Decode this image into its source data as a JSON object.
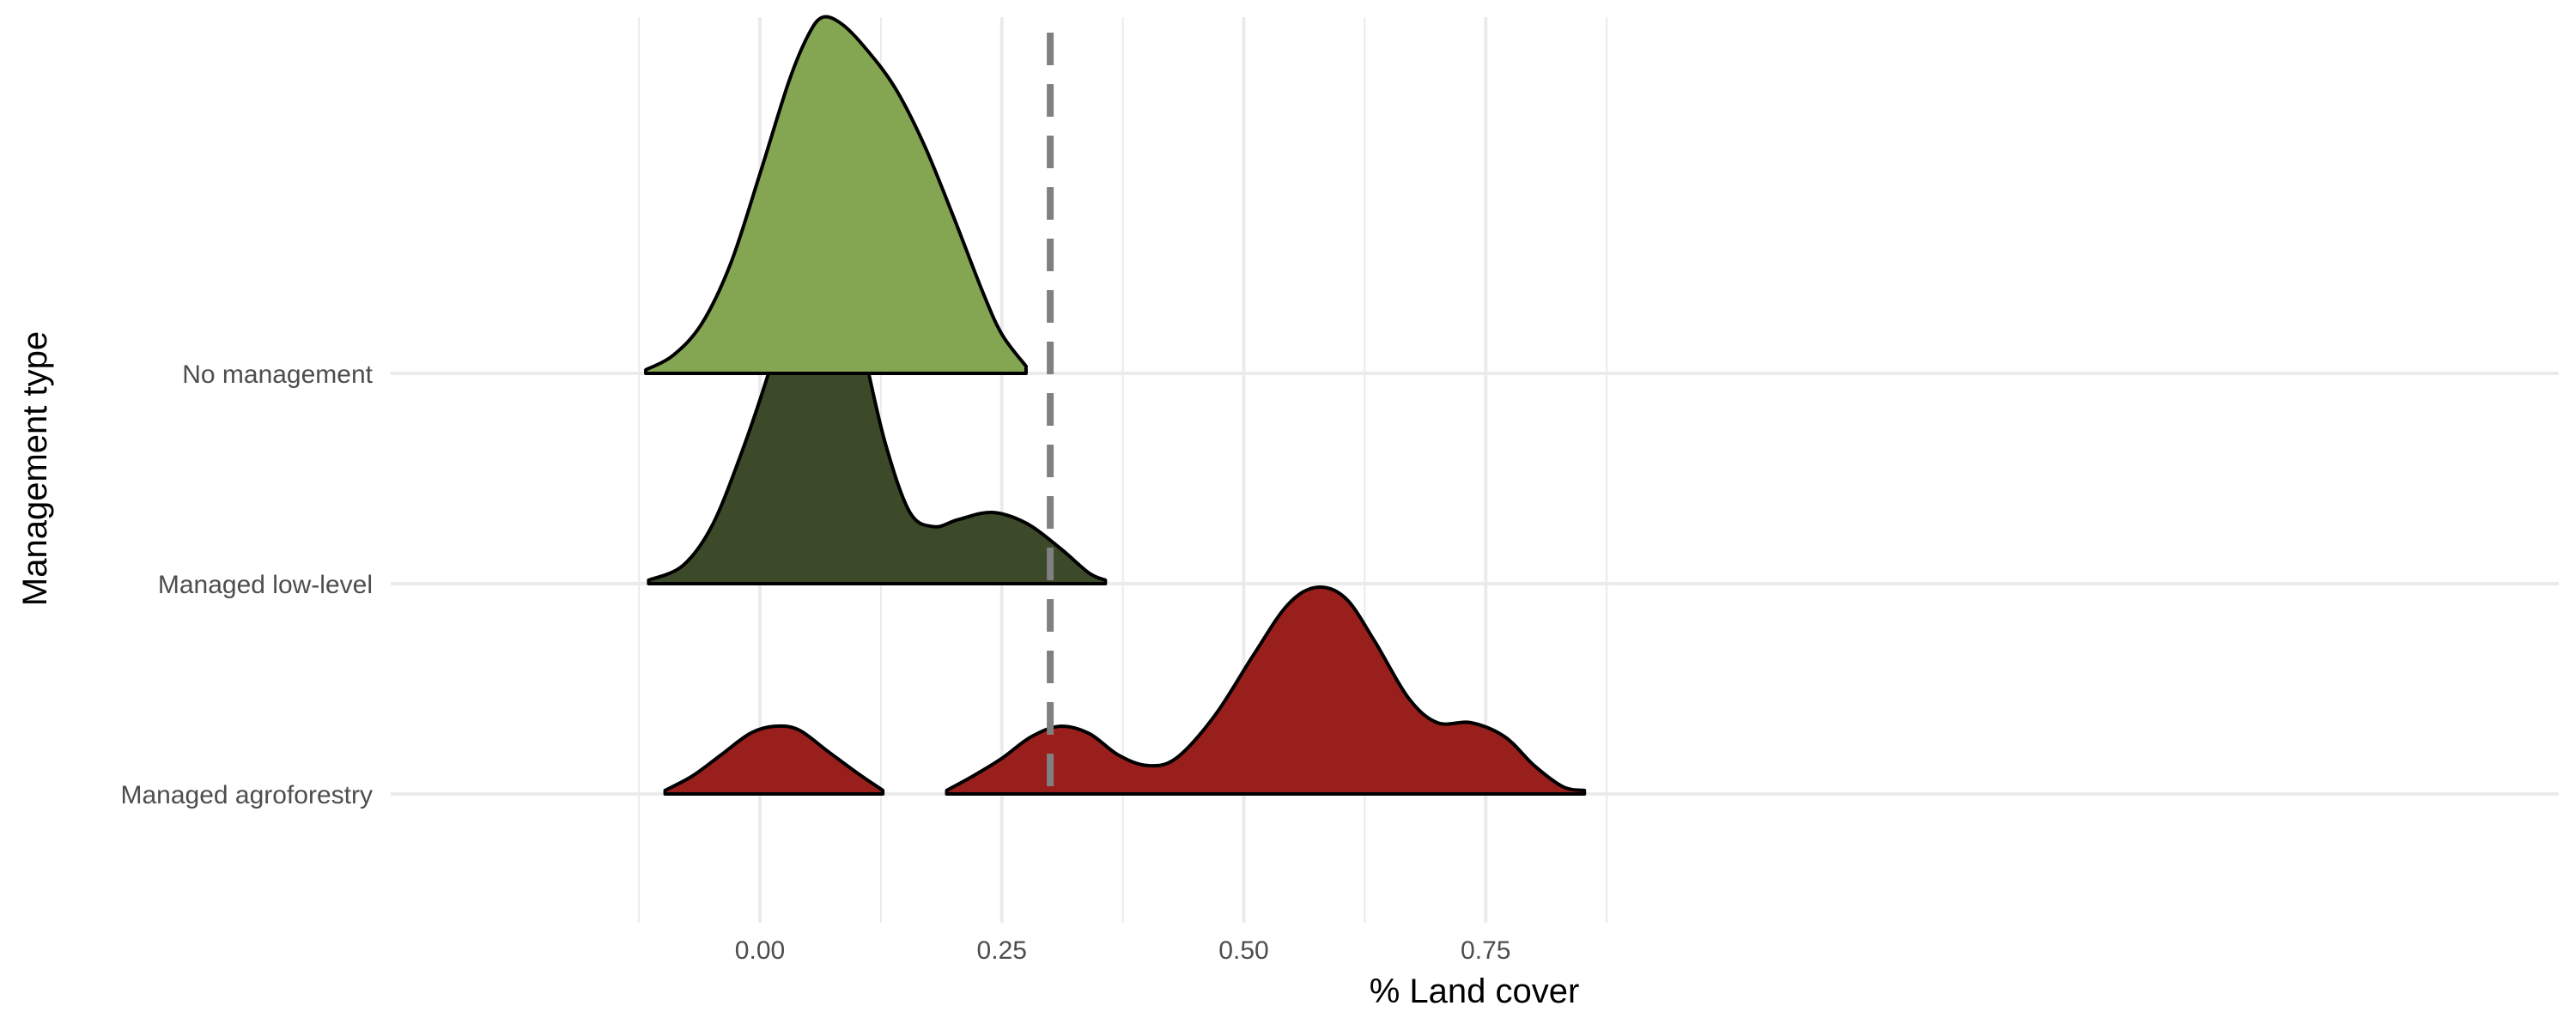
{
  "chart_data": {
    "type": "ridgeline",
    "xlabel": "% Land cover",
    "ylabel": "Management type",
    "xlim": [
      -0.125,
      0.93
    ],
    "x_ticks": [
      0.0,
      0.25,
      0.5,
      0.75
    ],
    "x_tick_labels": [
      "0.00",
      "0.25",
      "0.50",
      "0.75"
    ],
    "x_minor_ticks": [
      -0.125,
      0.125,
      0.375,
      0.625,
      0.875
    ],
    "reference_line": {
      "x": 0.3,
      "style": "dashed",
      "color": "#808080"
    },
    "grid": true,
    "categories": [
      "No management",
      "Managed low-level",
      "Managed agroforestry"
    ],
    "series": [
      {
        "name": "No management",
        "color": "#84A551",
        "density_points": [
          [
            -0.118,
            0.01
          ],
          [
            -0.09,
            0.05
          ],
          [
            -0.06,
            0.14
          ],
          [
            -0.03,
            0.31
          ],
          [
            0.0,
            0.56
          ],
          [
            0.03,
            0.82
          ],
          [
            0.05,
            0.95
          ],
          [
            0.065,
            1.0
          ],
          [
            0.085,
            0.98
          ],
          [
            0.11,
            0.91
          ],
          [
            0.14,
            0.8
          ],
          [
            0.17,
            0.64
          ],
          [
            0.2,
            0.44
          ],
          [
            0.23,
            0.23
          ],
          [
            0.25,
            0.11
          ],
          [
            0.275,
            0.02
          ]
        ]
      },
      {
        "name": "Managed low-level",
        "color": "#3C4A29",
        "density_points": [
          [
            -0.115,
            0.01
          ],
          [
            -0.08,
            0.05
          ],
          [
            -0.05,
            0.16
          ],
          [
            -0.02,
            0.36
          ],
          [
            0.01,
            0.6
          ],
          [
            0.04,
            0.88
          ],
          [
            0.055,
            0.98
          ],
          [
            0.063,
            1.0
          ],
          [
            0.072,
            0.98
          ],
          [
            0.09,
            0.87
          ],
          [
            0.11,
            0.62
          ],
          [
            0.13,
            0.39
          ],
          [
            0.155,
            0.2
          ],
          [
            0.18,
            0.16
          ],
          [
            0.205,
            0.18
          ],
          [
            0.24,
            0.2
          ],
          [
            0.275,
            0.17
          ],
          [
            0.31,
            0.1
          ],
          [
            0.34,
            0.03
          ],
          [
            0.357,
            0.01
          ]
        ]
      },
      {
        "name": "Managed agroforestry",
        "color": "#991F1D",
        "segments": [
          [
            [
              -0.098,
              0.01
            ],
            [
              -0.07,
              0.05
            ],
            [
              -0.04,
              0.11
            ],
            [
              -0.01,
              0.17
            ],
            [
              0.015,
              0.19
            ],
            [
              0.04,
              0.18
            ],
            [
              0.07,
              0.12
            ],
            [
              0.1,
              0.06
            ],
            [
              0.127,
              0.01
            ]
          ],
          [
            [
              0.193,
              0.01
            ],
            [
              0.22,
              0.05
            ],
            [
              0.25,
              0.1
            ],
            [
              0.28,
              0.16
            ],
            [
              0.31,
              0.19
            ],
            [
              0.34,
              0.17
            ],
            [
              0.37,
              0.11
            ],
            [
              0.4,
              0.08
            ],
            [
              0.43,
              0.1
            ],
            [
              0.47,
              0.22
            ],
            [
              0.51,
              0.39
            ],
            [
              0.545,
              0.53
            ],
            [
              0.575,
              0.58
            ],
            [
              0.605,
              0.55
            ],
            [
              0.635,
              0.43
            ],
            [
              0.67,
              0.27
            ],
            [
              0.7,
              0.2
            ],
            [
              0.735,
              0.2
            ],
            [
              0.77,
              0.16
            ],
            [
              0.8,
              0.08
            ],
            [
              0.83,
              0.02
            ],
            [
              0.852,
              0.01
            ]
          ]
        ]
      }
    ]
  }
}
